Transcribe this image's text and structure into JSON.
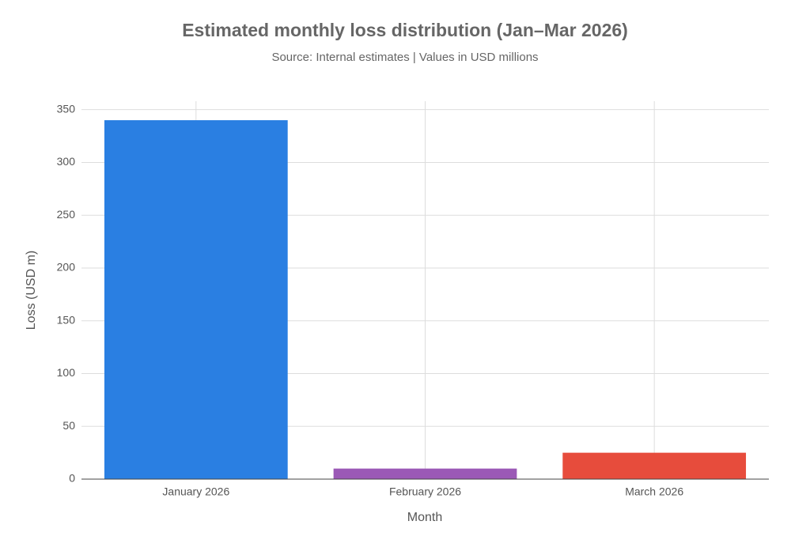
{
  "chart_data": {
    "type": "bar",
    "title": "Estimated monthly loss distribution (Jan–Mar 2026)",
    "subtitle": "Source: Internal estimates | Values in USD millions",
    "x_label": "Month",
    "y_label": "Loss (USD m)",
    "categories": [
      "January 2026",
      "February 2026",
      "March 2026"
    ],
    "values": [
      340,
      10,
      25
    ],
    "colors": [
      "#2a7fe2",
      "#9b59b6",
      "#e74c3c"
    ],
    "ylim": [
      0,
      358
    ],
    "yticks": [
      0,
      50,
      100,
      150,
      200,
      250,
      300,
      350
    ],
    "grid": true
  }
}
